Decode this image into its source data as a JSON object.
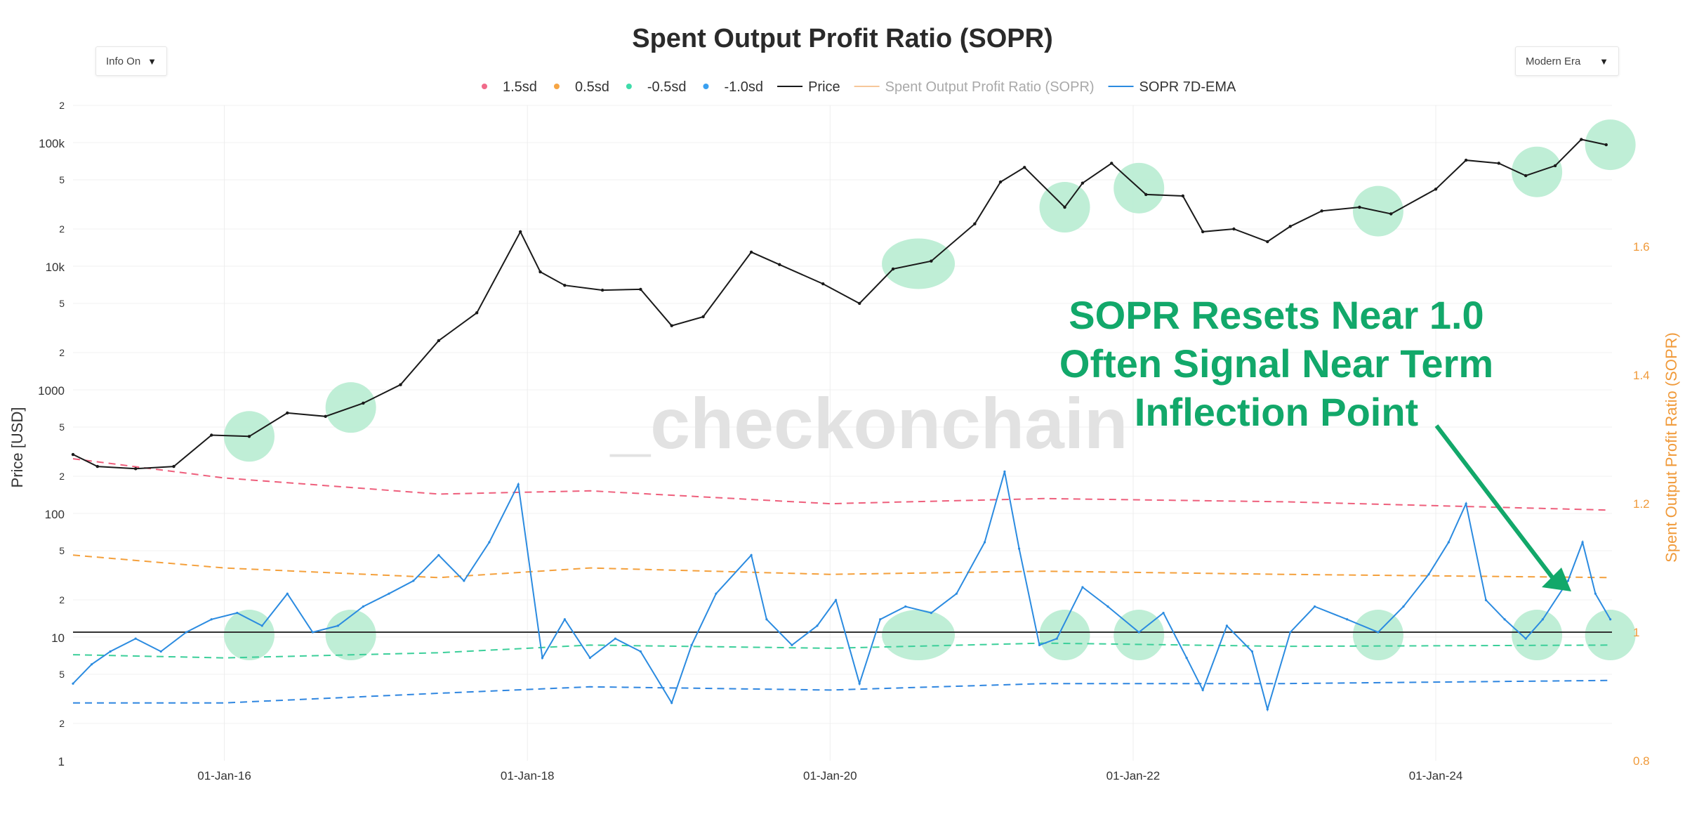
{
  "controls": {
    "left_dropdown": "Info On",
    "right_dropdown": "Modern Era",
    "dropdown_arrow": "▼"
  },
  "watermark": "_checkonchain",
  "annotation": {
    "lines": [
      "SOPR Resets Near 1.0",
      "Often Signal Near Term",
      "Inflection Point"
    ],
    "color": "#12a86a"
  },
  "chart_data": {
    "type": "line",
    "title": "Spent Output Profit Ratio (SOPR)",
    "y_left_label": "Price [USD]",
    "y_right_label": "Spent Output Profit Ratio (SOPR)",
    "y_left_scale": "log",
    "y_left_range": [
      1,
      200000
    ],
    "y_left_ticks": [
      "1",
      "2",
      "5",
      "10",
      "2",
      "5",
      "100",
      "2",
      "5",
      "1000",
      "2",
      "5",
      "10k",
      "2",
      "5",
      "100k",
      "2"
    ],
    "y_right_range": [
      0.8,
      1.82
    ],
    "y_right_ticks": [
      "0.8",
      "1",
      "1.2",
      "1.4",
      "1.6"
    ],
    "x_range": [
      "2015-01-01",
      "2025-03-01"
    ],
    "x_ticks": [
      "01-Jan-16",
      "01-Jan-18",
      "01-Jan-20",
      "01-Jan-22",
      "01-Jan-24"
    ],
    "grid": true,
    "legend_position": "top-center",
    "legend": [
      {
        "label": "1.5sd",
        "kind": "dot",
        "color": "#f06b8a"
      },
      {
        "label": "0.5sd",
        "kind": "dot",
        "color": "#f6a544"
      },
      {
        "label": "-0.5sd",
        "kind": "dot",
        "color": "#3fdcaa"
      },
      {
        "label": "-1.0sd",
        "kind": "dot",
        "color": "#3aa0f0"
      },
      {
        "label": "Price",
        "kind": "line",
        "color": "#1a1a1a"
      },
      {
        "label": "Spent Output Profit Ratio (SOPR)",
        "kind": "line",
        "color": "#f6c79a",
        "muted": true
      },
      {
        "label": "SOPR 7D-EMA",
        "kind": "line",
        "color": "#2b8be0"
      }
    ],
    "price_series": {
      "name": "Price",
      "color": "#1a1a1a",
      "x": [
        "2015-01-01",
        "2015-03-01",
        "2015-06-01",
        "2015-09-01",
        "2015-12-01",
        "2016-03-01",
        "2016-06-01",
        "2016-09-01",
        "2016-12-01",
        "2017-03-01",
        "2017-06-01",
        "2017-09-01",
        "2017-12-15",
        "2018-02-01",
        "2018-04-01",
        "2018-07-01",
        "2018-10-01",
        "2018-12-15",
        "2019-03-01",
        "2019-06-25",
        "2019-09-01",
        "2019-12-15",
        "2020-03-12",
        "2020-06-01",
        "2020-09-01",
        "2020-12-15",
        "2021-02-15",
        "2021-04-14",
        "2021-07-20",
        "2021-09-01",
        "2021-11-10",
        "2022-02-01",
        "2022-05-01",
        "2022-06-18",
        "2022-09-01",
        "2022-11-21",
        "2023-01-15",
        "2023-04-01",
        "2023-07-01",
        "2023-09-15",
        "2024-01-01",
        "2024-03-14",
        "2024-06-01",
        "2024-08-05",
        "2024-10-15",
        "2024-12-17",
        "2025-02-15"
      ],
      "y": [
        300,
        240,
        230,
        240,
        430,
        420,
        650,
        610,
        780,
        1100,
        2500,
        4200,
        19000,
        9000,
        7000,
        6400,
        6500,
        3300,
        3900,
        13000,
        10300,
        7200,
        5000,
        9500,
        11000,
        22000,
        48000,
        63000,
        30000,
        47000,
        68000,
        38000,
        37000,
        19000,
        20000,
        15800,
        21000,
        28000,
        30000,
        26500,
        42000,
        72000,
        68000,
        54000,
        65000,
        106000,
        96000
      ]
    },
    "sopr_series": {
      "name": "SOPR 7D-EMA",
      "color": "#2b8be0",
      "x": [
        "2015-01-01",
        "2015-02-15",
        "2015-04-01",
        "2015-06-01",
        "2015-08-01",
        "2015-10-01",
        "2015-12-01",
        "2016-02-01",
        "2016-04-01",
        "2016-06-01",
        "2016-08-01",
        "2016-10-01",
        "2016-12-01",
        "2017-02-01",
        "2017-04-01",
        "2017-06-01",
        "2017-08-01",
        "2017-10-01",
        "2017-12-10",
        "2018-02-06",
        "2018-04-01",
        "2018-06-01",
        "2018-08-01",
        "2018-10-01",
        "2018-12-15",
        "2019-02-01",
        "2019-04-01",
        "2019-06-25",
        "2019-08-01",
        "2019-10-01",
        "2019-12-01",
        "2020-01-15",
        "2020-03-12",
        "2020-05-01",
        "2020-07-01",
        "2020-09-01",
        "2020-11-01",
        "2021-01-08",
        "2021-02-25",
        "2021-04-01",
        "2021-05-20",
        "2021-07-01",
        "2021-09-01",
        "2021-11-01",
        "2022-01-15",
        "2022-03-15",
        "2022-05-10",
        "2022-06-18",
        "2022-08-15",
        "2022-10-15",
        "2022-11-21",
        "2023-01-15",
        "2023-03-15",
        "2023-06-01",
        "2023-08-15",
        "2023-10-15",
        "2023-12-15",
        "2024-02-01",
        "2024-03-14",
        "2024-05-01",
        "2024-06-15",
        "2024-08-05",
        "2024-09-15",
        "2024-11-15",
        "2024-12-20",
        "2025-01-20",
        "2025-02-25"
      ],
      "y": [
        0.92,
        0.95,
        0.97,
        0.99,
        0.97,
        1.0,
        1.02,
        1.03,
        1.01,
        1.06,
        1.0,
        1.01,
        1.04,
        1.06,
        1.08,
        1.12,
        1.08,
        1.14,
        1.23,
        0.96,
        1.02,
        0.96,
        0.99,
        0.97,
        0.89,
        0.98,
        1.06,
        1.12,
        1.02,
        0.98,
        1.01,
        1.05,
        0.92,
        1.02,
        1.04,
        1.03,
        1.06,
        1.14,
        1.25,
        1.13,
        0.98,
        0.99,
        1.07,
        1.04,
        1.0,
        1.03,
        0.96,
        0.91,
        1.01,
        0.97,
        0.88,
        1.0,
        1.04,
        1.02,
        1.0,
        1.04,
        1.09,
        1.14,
        1.2,
        1.05,
        1.02,
        0.99,
        1.02,
        1.08,
        1.14,
        1.06,
        1.02
      ]
    },
    "bands": [
      {
        "name": "1.5sd",
        "color": "#ee5f7c",
        "x": [
          "2015-01-01",
          "2016-01-01",
          "2017-06-01",
          "2018-06-01",
          "2020-01-01",
          "2021-06-01",
          "2023-01-01",
          "2025-02-25"
        ],
        "y": [
          1.27,
          1.24,
          1.215,
          1.22,
          1.2,
          1.208,
          1.203,
          1.19
        ]
      },
      {
        "name": "0.5sd",
        "color": "#f4a03c",
        "x": [
          "2015-01-01",
          "2016-01-01",
          "2017-06-01",
          "2018-06-01",
          "2020-01-01",
          "2021-06-01",
          "2023-01-01",
          "2025-02-25"
        ],
        "y": [
          1.12,
          1.1,
          1.085,
          1.1,
          1.09,
          1.095,
          1.09,
          1.085
        ]
      },
      {
        "name": "-0.5sd",
        "color": "#3ccf9a",
        "x": [
          "2015-01-01",
          "2016-01-01",
          "2017-06-01",
          "2018-06-01",
          "2020-01-01",
          "2021-06-01",
          "2023-01-01",
          "2025-02-25"
        ],
        "y": [
          0.965,
          0.96,
          0.968,
          0.98,
          0.975,
          0.983,
          0.978,
          0.98
        ]
      },
      {
        "name": "-1.0sd",
        "color": "#2f86e0",
        "x": [
          "2015-01-01",
          "2016-01-01",
          "2017-06-01",
          "2018-06-01",
          "2020-01-01",
          "2021-06-01",
          "2023-01-01",
          "2025-02-25"
        ],
        "y": [
          0.89,
          0.89,
          0.905,
          0.915,
          0.91,
          0.92,
          0.92,
          0.925
        ]
      }
    ],
    "reference_line": {
      "y": 1.0,
      "color": "#333333"
    },
    "highlight_dates": [
      "2016-03-01",
      "2016-11-01",
      "2020-08-01",
      "2021-07-20",
      "2022-01-15",
      "2023-08-15",
      "2024-09-01",
      "2025-02-25"
    ],
    "highlight_color": "#b8ecd2"
  }
}
